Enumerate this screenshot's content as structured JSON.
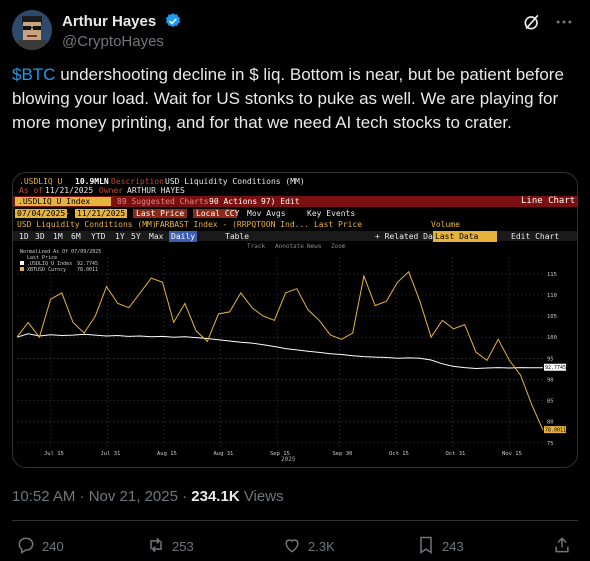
{
  "author": {
    "display_name": "Arthur Hayes",
    "handle": "@CryptoHayes"
  },
  "tweet": {
    "cashtag": "$BTC",
    "text_rest": " undershooting decline in $ liq. Bottom is near, but be patient before blowing your load. Wait for US stonks to puke as well. We are playing for more money printing, and for that we need AI tech stocks to crater."
  },
  "meta": {
    "time": "10:52 AM · Nov 21, 2025 · ",
    "views_count": "234.1K",
    "views_label": " Views"
  },
  "actions": {
    "replies": "240",
    "reposts": "253",
    "likes": "2.3K"
  },
  "chart_header": {
    "ticker": ".USDLIQ U",
    "mln": "10.9MLN",
    "desc_label": "Description",
    "desc": "USD Liquidity Conditions (MM)",
    "asof_label": "As of",
    "asof": "11/21/2025",
    "owner_label": "Owner",
    "owner": "ARTHUR HAYES",
    "index_label": ".USDLIQ U Index",
    "suggested": "89 Suggested Charts",
    "actions_label": "90 Actions",
    "edit_label": "97) Edit",
    "line_chart": "Line Chart",
    "date_from": "07/04/2025",
    "date_to": "11/21/2025",
    "last_price": "Last Price",
    "local_ccy": "Local CCY",
    "mov_avgs": "Mov Avgs",
    "key_events": "Key Events",
    "series1_desc": "USD Liquidity Conditions (MM)",
    "series2_desc": "FARBAST Index - (RRPQTOON Ind... Last Price",
    "volume": "Volume",
    "periods": [
      "1D",
      "3D",
      "1M",
      "6M",
      "YTD",
      "1Y",
      "5Y",
      "Max",
      "Daily"
    ],
    "table": "Table",
    "related": "+ Related Data",
    "last_data": "Last Data",
    "edit_chart": "Edit Chart",
    "tools": [
      "Track",
      "Annotate",
      "News",
      "Zoom"
    ],
    "normalized": "Normalized As Of 07/09/2025",
    "legend_lastprice": "Last Price"
  },
  "chart_data": {
    "type": "line",
    "xlabel": "2025",
    "x_ticks": [
      "Jul 15",
      "Jul 31",
      "Aug 15",
      "Aug 31",
      "Sep 15",
      "Sep 30",
      "Oct 15",
      "Oct 31",
      "Nov 15"
    ],
    "y_ticks": [
      75,
      80,
      85,
      90,
      95,
      100,
      105,
      110,
      115
    ],
    "ylim": [
      74,
      119
    ],
    "series": [
      {
        "name": ".USDLIQ U Index",
        "legend_value": "92.7745",
        "color": "#ffffff",
        "values": [
          100.0,
          100.8,
          100.3,
          100.6,
          100.4,
          100.5,
          100.7,
          100.5,
          100.3,
          100.4,
          100.2,
          100.3,
          100.1,
          100.2,
          100.0,
          100.1,
          99.9,
          99.7,
          99.4,
          99.1,
          98.8,
          98.6,
          98.2,
          97.8,
          97.3,
          97.0,
          96.7,
          96.4,
          96.1,
          95.9,
          95.6,
          95.4,
          95.3,
          95.2,
          95.0,
          95.1,
          95.0,
          94.6,
          93.7,
          93.1,
          92.8,
          92.6,
          92.7,
          92.8,
          92.7,
          92.8,
          92.75,
          92.77
        ]
      },
      {
        "name": "XBTUSD Curncy",
        "legend_value": "78.0011",
        "color": "#e6b33c",
        "values": [
          100.0,
          103.5,
          100.0,
          109.0,
          110.5,
          103.5,
          101.0,
          105.0,
          112.0,
          108.0,
          107.0,
          110.5,
          114.0,
          113.0,
          103.5,
          108.0,
          101.5,
          99.0,
          105.5,
          106.0,
          110.5,
          107.0,
          105.0,
          104.0,
          110.5,
          111.5,
          106.5,
          104.0,
          100.5,
          99.5,
          101.0,
          114.5,
          107.5,
          108.5,
          113.0,
          115.5,
          108.5,
          100.0,
          104.0,
          102.0,
          103.0,
          96.5,
          94.5,
          99.5,
          94.5,
          91.0,
          84.0,
          78.0
        ]
      }
    ]
  }
}
